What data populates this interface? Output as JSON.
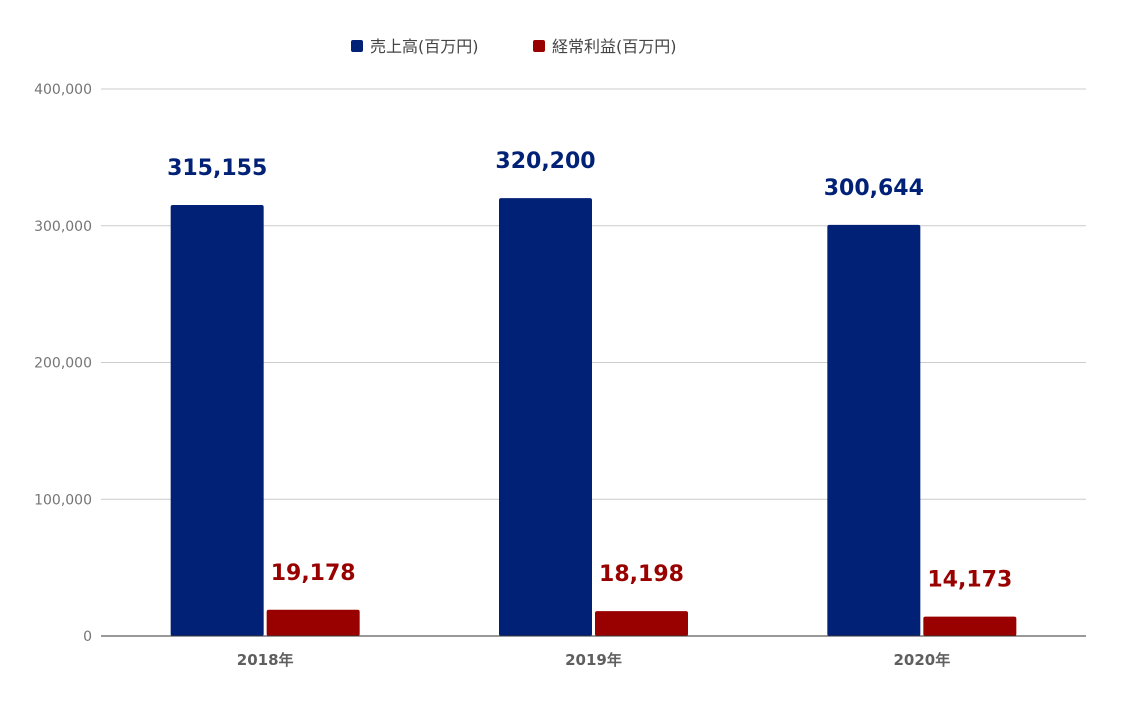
{
  "chart_data": {
    "type": "bar",
    "categories": [
      "2018年",
      "2019年",
      "2020年"
    ],
    "series": [
      {
        "name": "売上高(百万円)",
        "values": [
          315155,
          320200,
          300644
        ],
        "labels": [
          "315,155",
          "320,200",
          "300,644"
        ],
        "color": "#002176"
      },
      {
        "name": "経常利益(百万円)",
        "values": [
          19178,
          18198,
          14173
        ],
        "labels": [
          "19,178",
          "18,198",
          "14,173"
        ],
        "color": "#990000"
      }
    ],
    "title": "",
    "xlabel": "",
    "ylabel": "",
    "ylim": [
      0,
      400000
    ],
    "yticks": [
      0,
      100000,
      200000,
      300000,
      400000
    ],
    "ytick_labels": [
      "0",
      "100,000",
      "200,000",
      "300,000",
      "400,000"
    ],
    "grid": true,
    "legend_position": "top-center"
  }
}
